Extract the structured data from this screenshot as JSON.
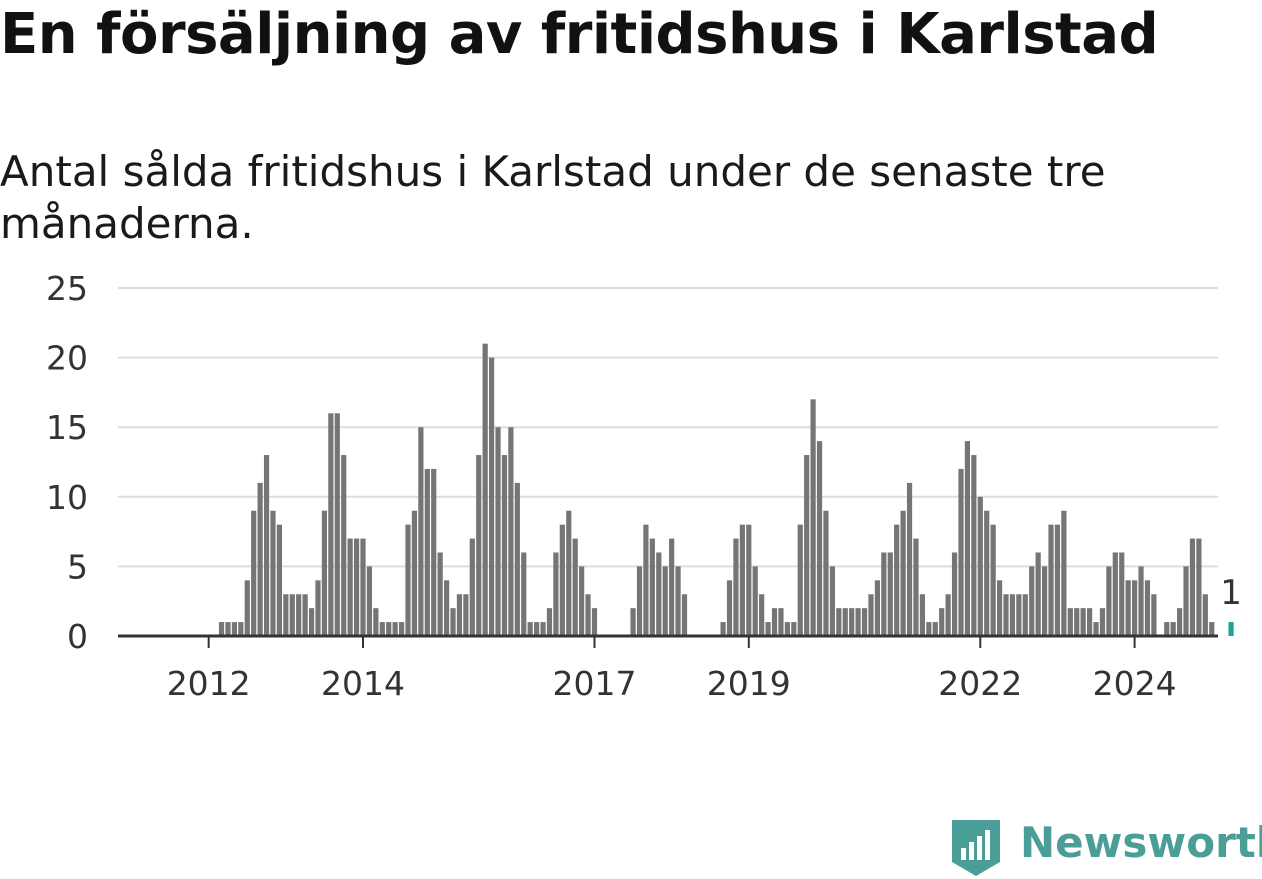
{
  "title": "En försäljning av fritidshus i Karlstad",
  "subtitle": "Antal sålda fritidshus i Karlstad under de senaste tre månaderna.",
  "brand": {
    "name": "Newsworthy",
    "color": "#4a9e97"
  },
  "colors": {
    "bar": "#757477",
    "highlight": "#20a396",
    "grid": "#dddddd",
    "axis": "#333333"
  },
  "chart_data": {
    "type": "bar",
    "title": "",
    "xlabel": "",
    "ylabel": "",
    "ylim": [
      0,
      25
    ],
    "yticks": [
      0,
      5,
      10,
      15,
      20,
      25
    ],
    "xtick_labels": [
      "2012",
      "2014",
      "2017",
      "2019",
      "2022",
      "2024"
    ],
    "xtick_index": [
      6,
      30,
      66,
      90,
      126,
      150
    ],
    "highlight_label": "1",
    "grid": true,
    "values": [
      0,
      0,
      0,
      0,
      0,
      0,
      0,
      0,
      1,
      1,
      1,
      1,
      4,
      9,
      11,
      13,
      9,
      8,
      3,
      3,
      3,
      3,
      2,
      4,
      9,
      16,
      16,
      13,
      7,
      7,
      7,
      5,
      2,
      1,
      1,
      1,
      1,
      8,
      9,
      15,
      12,
      12,
      6,
      4,
      2,
      3,
      3,
      7,
      13,
      21,
      20,
      15,
      13,
      15,
      11,
      6,
      1,
      1,
      1,
      2,
      6,
      8,
      9,
      7,
      5,
      3,
      2,
      0,
      0,
      0,
      0,
      0,
      2,
      5,
      8,
      7,
      6,
      5,
      7,
      5,
      3,
      0,
      0,
      0,
      0,
      0,
      1,
      4,
      7,
      8,
      8,
      5,
      3,
      1,
      2,
      2,
      1,
      1,
      8,
      13,
      17,
      14,
      9,
      5,
      2,
      2,
      2,
      2,
      2,
      3,
      4,
      6,
      6,
      8,
      9,
      11,
      7,
      3,
      1,
      1,
      2,
      3,
      6,
      12,
      14,
      13,
      10,
      9,
      8,
      4,
      3,
      3,
      3,
      3,
      5,
      6,
      5,
      8,
      8,
      9,
      2,
      2,
      2,
      2,
      1,
      2,
      5,
      6,
      6,
      4,
      4,
      5,
      4,
      3,
      0,
      1,
      1,
      2,
      5,
      7,
      7,
      3,
      1,
      0,
      0,
      1
    ]
  }
}
